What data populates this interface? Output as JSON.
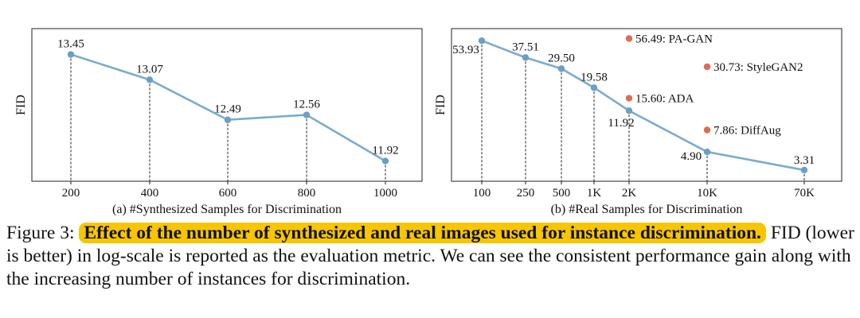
{
  "chart_data": [
    {
      "type": "line",
      "xlabel": "(a) #Synthesized Samples for Discrimination",
      "ylabel": "FID",
      "y_scale": "log",
      "x_scale": "categorical",
      "grid": false,
      "categories": [
        "200",
        "400",
        "600",
        "800",
        "1000"
      ],
      "series": [
        {
          "values": [
            13.45,
            13.07,
            12.49,
            12.56,
            11.92
          ],
          "labels": [
            "13.45",
            "13.07",
            "12.49",
            "12.56",
            "11.92"
          ]
        }
      ],
      "ylim": [
        11.65,
        13.85
      ],
      "line_color": "#7aaccd",
      "point_color": "#6a9fc6"
    },
    {
      "type": "line",
      "xlabel": "(b) #Real Samples for Discrimination",
      "ylabel": "FID",
      "y_scale": "log",
      "x_scale": "log",
      "grid": false,
      "x": [
        100,
        250,
        500,
        1000,
        2000,
        10000,
        70000
      ],
      "x_tick_labels": [
        "100",
        "250",
        "500",
        "1K",
        "2K",
        "10K",
        "70K"
      ],
      "series": [
        {
          "values": [
            53.93,
            37.51,
            29.5,
            19.58,
            11.92,
            4.9,
            3.31
          ],
          "labels": [
            "53.93",
            "37.51",
            "29.50",
            "19.58",
            "11.92",
            "4.90",
            "3.31"
          ]
        }
      ],
      "annotations": [
        {
          "x": 2000,
          "y": 56.49,
          "text": "56.49: PA-GAN"
        },
        {
          "x": 10000,
          "y": 30.73,
          "text": "30.73: StyleGAN2"
        },
        {
          "x": 2000,
          "y": 15.6,
          "text": "15.60: ADA"
        },
        {
          "x": 10000,
          "y": 7.86,
          "text": "7.86: DiffAug"
        }
      ],
      "ylim": [
        2.6,
        70
      ],
      "line_color": "#7aaccd",
      "point_color": "#6a9fc6",
      "annotation_color": "#e06b55"
    }
  ],
  "caption": {
    "label": "Figure 3:",
    "bold": "Effect of the number of synthesized and real images used for instance discrimination.",
    "text": "FID (lower is better) in log-scale is reported as the evaluation metric.  We can see the consistent performance gain along with the increasing number of instances for discrimination."
  }
}
